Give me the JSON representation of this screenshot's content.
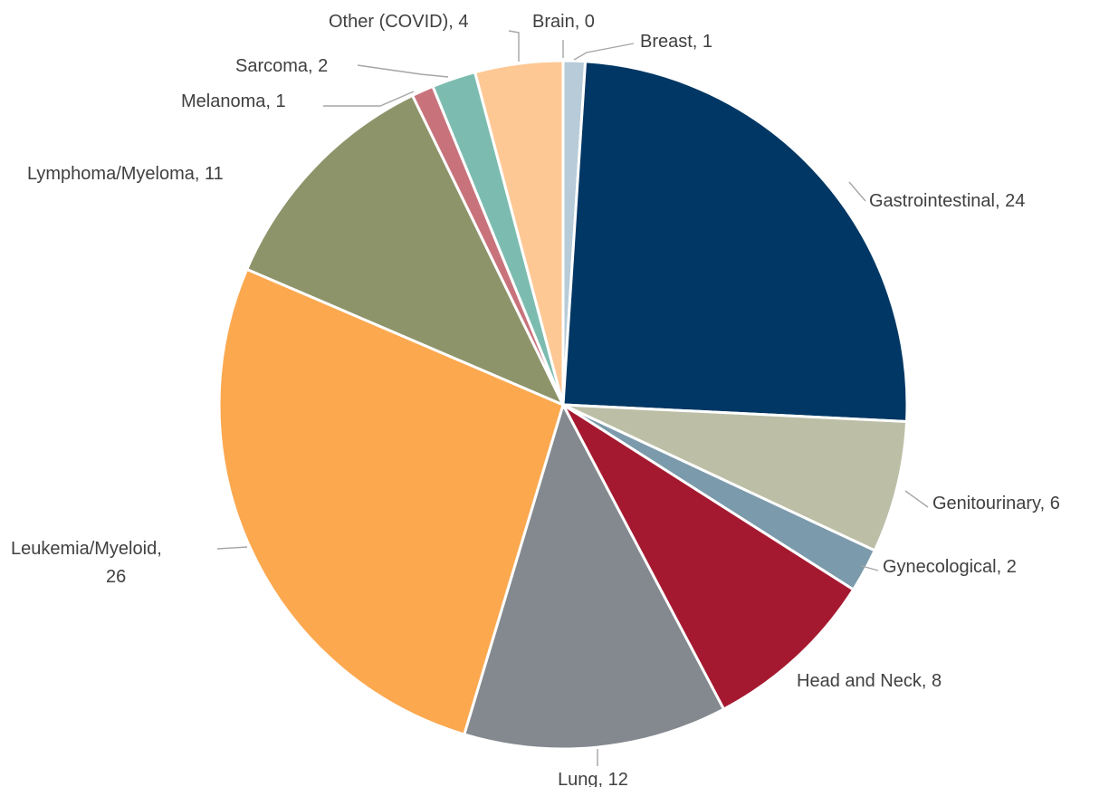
{
  "chart_data": {
    "type": "pie",
    "title": "",
    "start_angle_deg": 0,
    "direction": "clockwise",
    "slices": [
      {
        "name": "Brain",
        "value": 0,
        "label": "Brain, 0",
        "color": "#5b9bd5"
      },
      {
        "name": "Breast",
        "value": 1,
        "label": "Breast, 1",
        "color": "#b7cbd8"
      },
      {
        "name": "Gastrointestinal",
        "value": 24,
        "label": "Gastrointestinal, 24",
        "color": "#003764"
      },
      {
        "name": "Genitourinary",
        "value": 6,
        "label": "Genitourinary, 6",
        "color": "#bcbfa6"
      },
      {
        "name": "Gynecological",
        "value": 2,
        "label": "Gynecological, 2",
        "color": "#7b9aab"
      },
      {
        "name": "Head and Neck",
        "value": 8,
        "label": "Head and Neck, 8",
        "color": "#a51930"
      },
      {
        "name": "Lung",
        "value": 12,
        "label": "Lung, 12",
        "color": "#83898e"
      },
      {
        "name": "Leukemia/Myeloid",
        "value": 26,
        "label_lines": [
          "Leukemia/Myeloid,",
          "26"
        ],
        "color": "#fca84f"
      },
      {
        "name": "Lymphoma/Myeloma",
        "value": 11,
        "label": "Lymphoma/Myeloma, 11",
        "color": "#8e946a"
      },
      {
        "name": "Melanoma",
        "value": 1,
        "label": "Melanoma, 1",
        "color": "#c8737c"
      },
      {
        "name": "Sarcoma",
        "value": 2,
        "label": "Sarcoma, 2",
        "color": "#7cbcb0"
      },
      {
        "name": "Other (COVID)",
        "value": 4,
        "label": "Other (COVID), 4",
        "color": "#fec895"
      }
    ]
  }
}
